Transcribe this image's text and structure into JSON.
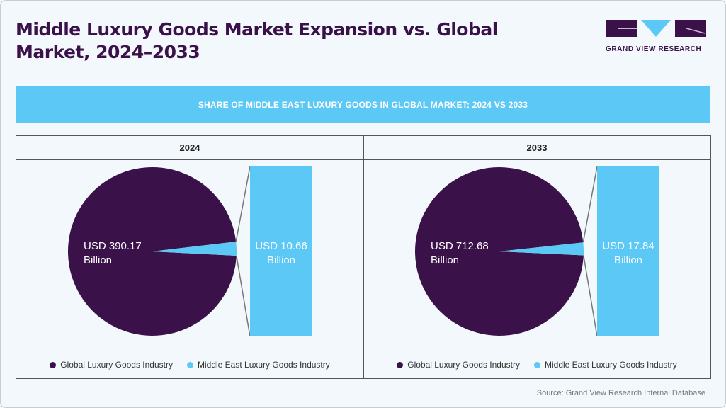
{
  "title": "Middle Luxury Goods Market Expansion vs. Global Market, 2024–2033",
  "logo": {
    "text": "GRAND VIEW RESEARCH"
  },
  "banner": "SHARE OF MIDDLE EAST LUXURY GOODS IN GLOBAL MARKET: 2024 VS 2033",
  "colors": {
    "global": "#3a1149",
    "middle_east": "#5bc8f5"
  },
  "chart_data": [
    {
      "type": "pie",
      "title": "2024",
      "slices": [
        {
          "name": "Global Luxury Goods Industry",
          "value": 390.17,
          "label": "USD 390.17 Billion"
        },
        {
          "name": "Middle East Luxury Goods Industry",
          "value": 10.66,
          "label": "USD 10.66 Billion"
        }
      ],
      "label_line1": [
        "USD 390.17",
        "USD 10.66"
      ],
      "label_line2": [
        "Billion",
        "Billion"
      ],
      "legend": [
        "Global Luxury Goods Industry",
        "Middle East Luxury Goods Industry"
      ],
      "legend_position": "bottom"
    },
    {
      "type": "pie",
      "title": "2033",
      "slices": [
        {
          "name": "Global Luxury Goods Industry",
          "value": 712.68,
          "label": "USD 712.68 Billion"
        },
        {
          "name": "Middle East Luxury Goods Industry",
          "value": 17.84,
          "label": "USD 17.84 Billion"
        }
      ],
      "label_line1": [
        "USD 712.68",
        "USD 17.84"
      ],
      "label_line2": [
        "Billion",
        "Billion"
      ],
      "legend": [
        "Global Luxury Goods Industry",
        "Middle East Luxury Goods Industry"
      ],
      "legend_position": "bottom"
    }
  ],
  "source": "Source: Grand View Research Internal Database"
}
